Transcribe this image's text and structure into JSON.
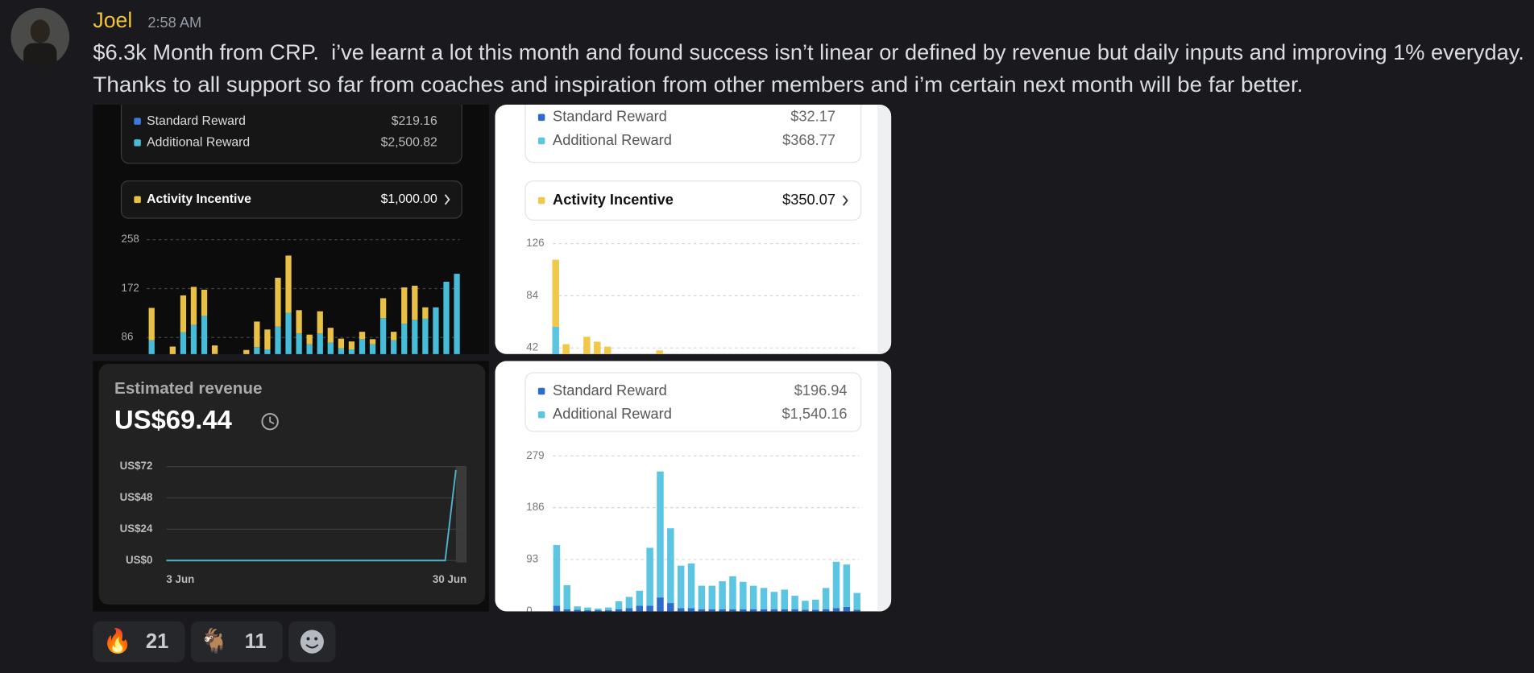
{
  "message": {
    "author": "Joel",
    "timestamp": "2:58 AM",
    "lines": [
      "$6.3k Month from CRP.  i’ve learnt a lot this month and found success isn’t linear or defined by revenue but daily inputs and improving 1% everyday.",
      "Thanks to all support so far from coaches and inspiration from other members and i’m certain next month will be far better."
    ]
  },
  "attachments": [
    {
      "legend": [
        {
          "label": "Standard Reward",
          "value": "$219.16",
          "color": "#3b7be0"
        },
        {
          "label": "Additional Reward",
          "value": "$2,500.82",
          "color": "#46bcd8"
        }
      ],
      "incentive": {
        "label": "Activity Incentive",
        "value": "$1,000.00",
        "color": "#e9c046"
      },
      "chart_data": {
        "type": "bar",
        "stacked": true,
        "grid": true,
        "ylim": [
          0,
          258
        ],
        "yticks": [
          86,
          172,
          258
        ],
        "categories": [
          null,
          null,
          null,
          null,
          null,
          null,
          null,
          null,
          null,
          null,
          null,
          null,
          null,
          null,
          null,
          null,
          null,
          null,
          null,
          null,
          null,
          null,
          null,
          null,
          null,
          null,
          null,
          null,
          null,
          null
        ],
        "series": [
          {
            "color": "#46bcd8",
            "values": [
              81,
              0,
              50,
              95,
              108,
              124,
              57,
              0,
              0,
              40,
              69,
              65,
              105,
              129,
              93,
              74,
              93,
              77,
              67,
              65,
              83,
              74,
              120,
              81,
              110,
              117,
              119,
              139,
              184,
              198
            ]
          },
          {
            "color": "#e9c046",
            "values": [
              57,
              0,
              20,
              65,
              67,
              46,
              15,
              0,
              0,
              24,
              45,
              35,
              86,
              101,
              41,
              17,
              39,
              26,
              17,
              14,
              13,
              9,
              35,
              15,
              64,
              60,
              20,
              0,
              0,
              0
            ]
          }
        ]
      }
    },
    {
      "legend": [
        {
          "label": "Standard Reward",
          "value": "$32.17",
          "color": "#2d6cc8"
        },
        {
          "label": "Additional Reward",
          "value": "$368.77",
          "color": "#5cc6e2"
        }
      ],
      "incentive": {
        "label": "Activity Incentive",
        "value": "$350.07",
        "color": "#f0c94b"
      },
      "chart_data": {
        "type": "bar",
        "stacked": true,
        "grid": true,
        "ylim": [
          0,
          126
        ],
        "yticks": [
          42,
          84,
          126
        ],
        "categories": [
          null,
          null,
          null,
          null,
          null,
          null,
          null,
          null,
          null,
          null,
          null,
          null,
          null,
          null,
          null,
          null,
          null,
          null,
          null,
          null,
          null,
          null,
          null,
          null,
          null,
          null,
          null,
          null,
          null,
          null
        ],
        "series": [
          {
            "color": "#2d6cc8",
            "values": [
              10,
              0,
              0,
              0,
              0,
              0,
              0,
              0,
              0,
              0,
              0,
              0,
              0,
              0,
              0,
              0,
              0,
              0,
              0,
              0,
              0,
              0,
              0,
              0,
              0,
              0,
              0,
              0,
              0,
              0
            ]
          },
          {
            "color": "#5cc6e2",
            "values": [
              49,
              30,
              20,
              30,
              30,
              30,
              20,
              20,
              20,
              20,
              30,
              20,
              20,
              20,
              20,
              20,
              20,
              20,
              20,
              20,
              20,
              20,
              20,
              20,
              20,
              20,
              20,
              20,
              20,
              20
            ]
          },
          {
            "color": "#f0c94b",
            "values": [
              54,
              15,
              0,
              21,
              17,
              13,
              0,
              0,
              0,
              0,
              10,
              0,
              0,
              0,
              0,
              0,
              0,
              0,
              0,
              0,
              0,
              0,
              0,
              0,
              0,
              0,
              0,
              0,
              0,
              0
            ]
          }
        ]
      }
    },
    {
      "title": "Estimated revenue",
      "amount": "US$69.44",
      "chart_data": {
        "type": "line",
        "color": "#4fb3c6",
        "grid": true,
        "ylim": [
          0,
          72
        ],
        "yticks": [
          {
            "value": 0,
            "label": "US$0"
          },
          {
            "value": 24,
            "label": "US$24"
          },
          {
            "value": 48,
            "label": "US$48"
          },
          {
            "value": 72,
            "label": "US$72"
          }
        ],
        "categories": [
          "3 Jun",
          null,
          null,
          null,
          null,
          null,
          null,
          null,
          null,
          null,
          null,
          null,
          null,
          null,
          null,
          null,
          null,
          null,
          null,
          null,
          null,
          null,
          null,
          null,
          null,
          null,
          null,
          "30 Jun"
        ],
        "values": [
          0,
          0,
          0,
          0,
          0,
          0,
          0,
          0,
          0,
          0,
          0,
          0,
          0,
          0,
          0,
          0,
          0,
          0,
          0,
          0,
          0,
          0,
          0,
          0,
          0,
          0,
          0,
          69.44
        ]
      }
    },
    {
      "legend": [
        {
          "label": "Standard Reward",
          "value": "$196.94",
          "color": "#2d6cc8"
        },
        {
          "label": "Additional Reward",
          "value": "$1,540.16",
          "color": "#5cc6e2"
        }
      ],
      "chart_data": {
        "type": "bar",
        "stacked": true,
        "grid": true,
        "ylim": [
          0,
          279
        ],
        "yticks": [
          0,
          93,
          186,
          279
        ],
        "categories": [
          null,
          null,
          null,
          null,
          null,
          null,
          null,
          null,
          null,
          null,
          null,
          null,
          null,
          null,
          null,
          null,
          null,
          null,
          null,
          null,
          null,
          null,
          null,
          null,
          null,
          null,
          null,
          null,
          null,
          null
        ],
        "series": [
          {
            "color": "#2d6cc8",
            "values": [
              10,
              4,
              3,
              2,
              2,
              2,
              4,
              6,
              10,
              10,
              25,
              15,
              6,
              6,
              4,
              4,
              4,
              4,
              4,
              4,
              4,
              4,
              4,
              4,
              3,
              3,
              4,
              6,
              8,
              3
            ]
          },
          {
            "color": "#5cc6e2",
            "values": [
              109,
              43,
              6,
              5,
              3,
              5,
              14,
              20,
              27,
              104,
              226,
              134,
              76,
              80,
              42,
              42,
              50,
              59,
              49,
              42,
              38,
              31,
              35,
              24,
              16,
              18,
              38,
              83,
              76,
              30
            ]
          }
        ]
      }
    }
  ],
  "reactions": [
    {
      "emoji": "🔥",
      "count": 21
    },
    {
      "emoji": "🐐",
      "count": 11
    }
  ]
}
